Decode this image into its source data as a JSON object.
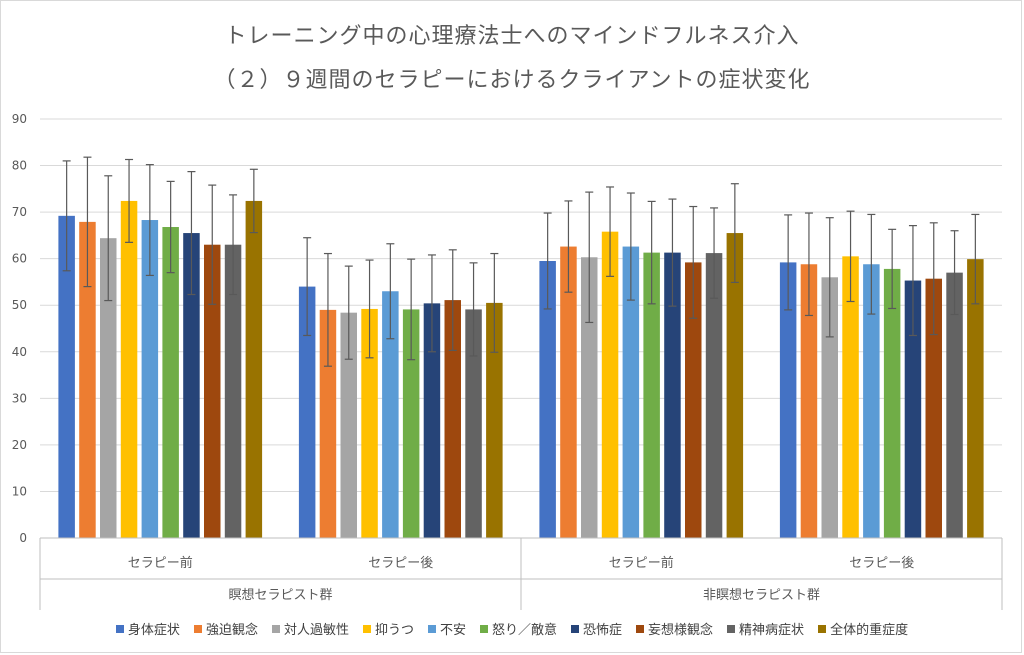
{
  "title_line1": "トレーニング中の心理療法士へのマインドフルネス介入",
  "title_line2": "（２）９週間のセラピーにおけるクライアントの症状変化",
  "chart_data": {
    "type": "bar",
    "ylim": [
      0,
      90
    ],
    "yticks": [
      "0",
      "10",
      "20",
      "30",
      "40",
      "50",
      "60",
      "70",
      "80",
      "90"
    ],
    "grid": true,
    "legend_position": "bottom",
    "groups": [
      {
        "label": "瞑想セラピスト群",
        "categories": [
          "セラピー前",
          "セラピー後"
        ]
      },
      {
        "label": "非瞑想セラピスト群",
        "categories": [
          "セラピー前",
          "セラピー後"
        ]
      }
    ],
    "series": [
      {
        "name": "身体症状",
        "color": "#4472c4",
        "values": [
          69.2,
          54.0,
          59.5,
          59.2
        ],
        "errors": [
          11.8,
          10.5,
          10.3,
          10.2
        ]
      },
      {
        "name": "強迫観念",
        "color": "#ed7d31",
        "values": [
          67.9,
          49.0,
          62.6,
          58.8
        ],
        "errors": [
          13.9,
          12.1,
          9.8,
          11.0
        ]
      },
      {
        "name": "対人過敏性",
        "color": "#a5a5a5",
        "values": [
          64.4,
          48.4,
          60.3,
          56.0
        ],
        "errors": [
          13.4,
          10.0,
          14.0,
          12.8
        ]
      },
      {
        "name": "抑うつ",
        "color": "#ffc000",
        "values": [
          72.4,
          49.2,
          65.8,
          60.5
        ],
        "errors": [
          8.9,
          10.5,
          9.6,
          9.7
        ]
      },
      {
        "name": "不安",
        "color": "#5b9bd5",
        "values": [
          68.3,
          53.0,
          62.6,
          58.8
        ],
        "errors": [
          11.9,
          10.2,
          11.5,
          10.7
        ]
      },
      {
        "name": "怒り／敵意",
        "color": "#70ad47",
        "values": [
          66.8,
          49.1,
          61.3,
          57.8
        ],
        "errors": [
          9.8,
          10.8,
          11.0,
          8.5
        ]
      },
      {
        "name": "恐怖症",
        "color": "#264478",
        "values": [
          65.5,
          50.4,
          61.3,
          55.3
        ],
        "errors": [
          13.2,
          10.4,
          11.5,
          11.8
        ]
      },
      {
        "name": "妄想様観念",
        "color": "#9e480e",
        "values": [
          63.0,
          51.1,
          59.2,
          55.7
        ],
        "errors": [
          12.8,
          10.8,
          12.0,
          12.0
        ]
      },
      {
        "name": "精神病症状",
        "color": "#636363",
        "values": [
          63.0,
          49.1,
          61.2,
          57.0
        ],
        "errors": [
          10.7,
          10.0,
          9.7,
          9.0
        ]
      },
      {
        "name": "全体的重症度",
        "color": "#997300",
        "values": [
          72.4,
          50.5,
          65.5,
          59.9
        ],
        "errors": [
          6.8,
          10.6,
          10.6,
          9.6
        ]
      }
    ]
  }
}
